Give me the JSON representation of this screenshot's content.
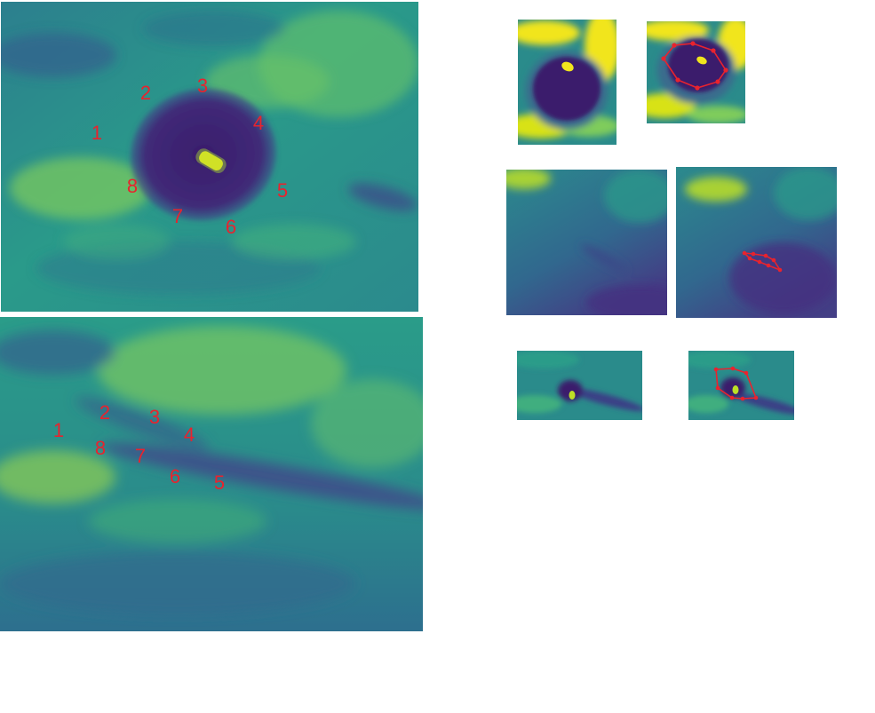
{
  "palette": {
    "dark": "#3b1f6e",
    "deep": "#45337f",
    "mid_teal": "#2a8b8a",
    "teal": "#2f9f88",
    "green": "#7fcc5c",
    "yellow": "#f1e51d",
    "marker_red": "#e8232e"
  },
  "large_top": {
    "labels": [
      "1",
      "2",
      "3",
      "4",
      "5",
      "6",
      "7",
      "8"
    ]
  },
  "large_bottom": {
    "labels": [
      "1",
      "2",
      "3",
      "4",
      "5",
      "6",
      "7",
      "8"
    ]
  }
}
